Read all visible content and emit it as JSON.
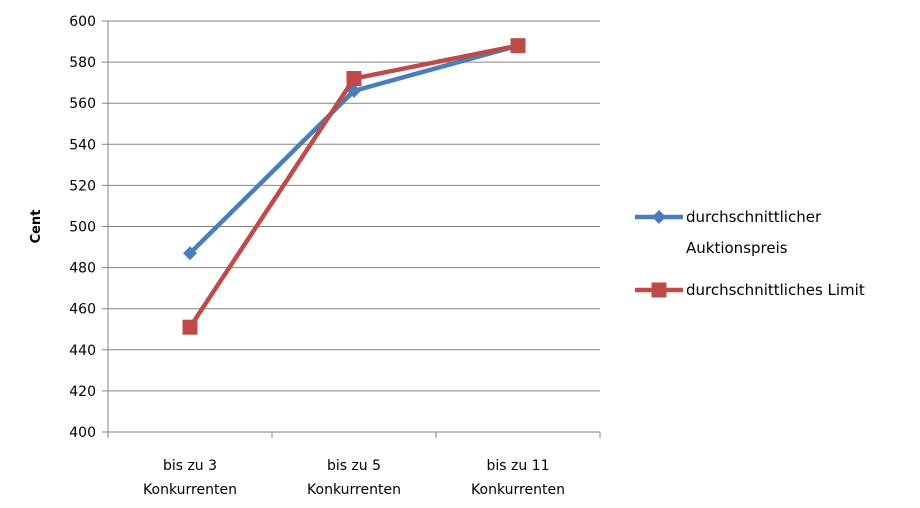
{
  "chart_data": {
    "type": "line",
    "title": "",
    "xlabel": "",
    "ylabel": "Cent",
    "ylim": [
      400,
      600
    ],
    "ytick_step": 20,
    "grid": true,
    "legend_position": "right",
    "categories": [
      [
        "bis zu 3",
        "Konkurrenten"
      ],
      [
        "bis zu 5",
        "Konkurrenten"
      ],
      [
        "bis zu 11",
        "Konkurrenten"
      ]
    ],
    "series": [
      {
        "name": [
          "durchschnittlicher",
          "Auktionspreis"
        ],
        "values": [
          487,
          566,
          588
        ],
        "color": "#4a7ebb",
        "marker": "diamond"
      },
      {
        "name": [
          "durchschnittliches Limit"
        ],
        "values": [
          451,
          572,
          588
        ],
        "color": "#be4b48",
        "marker": "square"
      }
    ]
  }
}
